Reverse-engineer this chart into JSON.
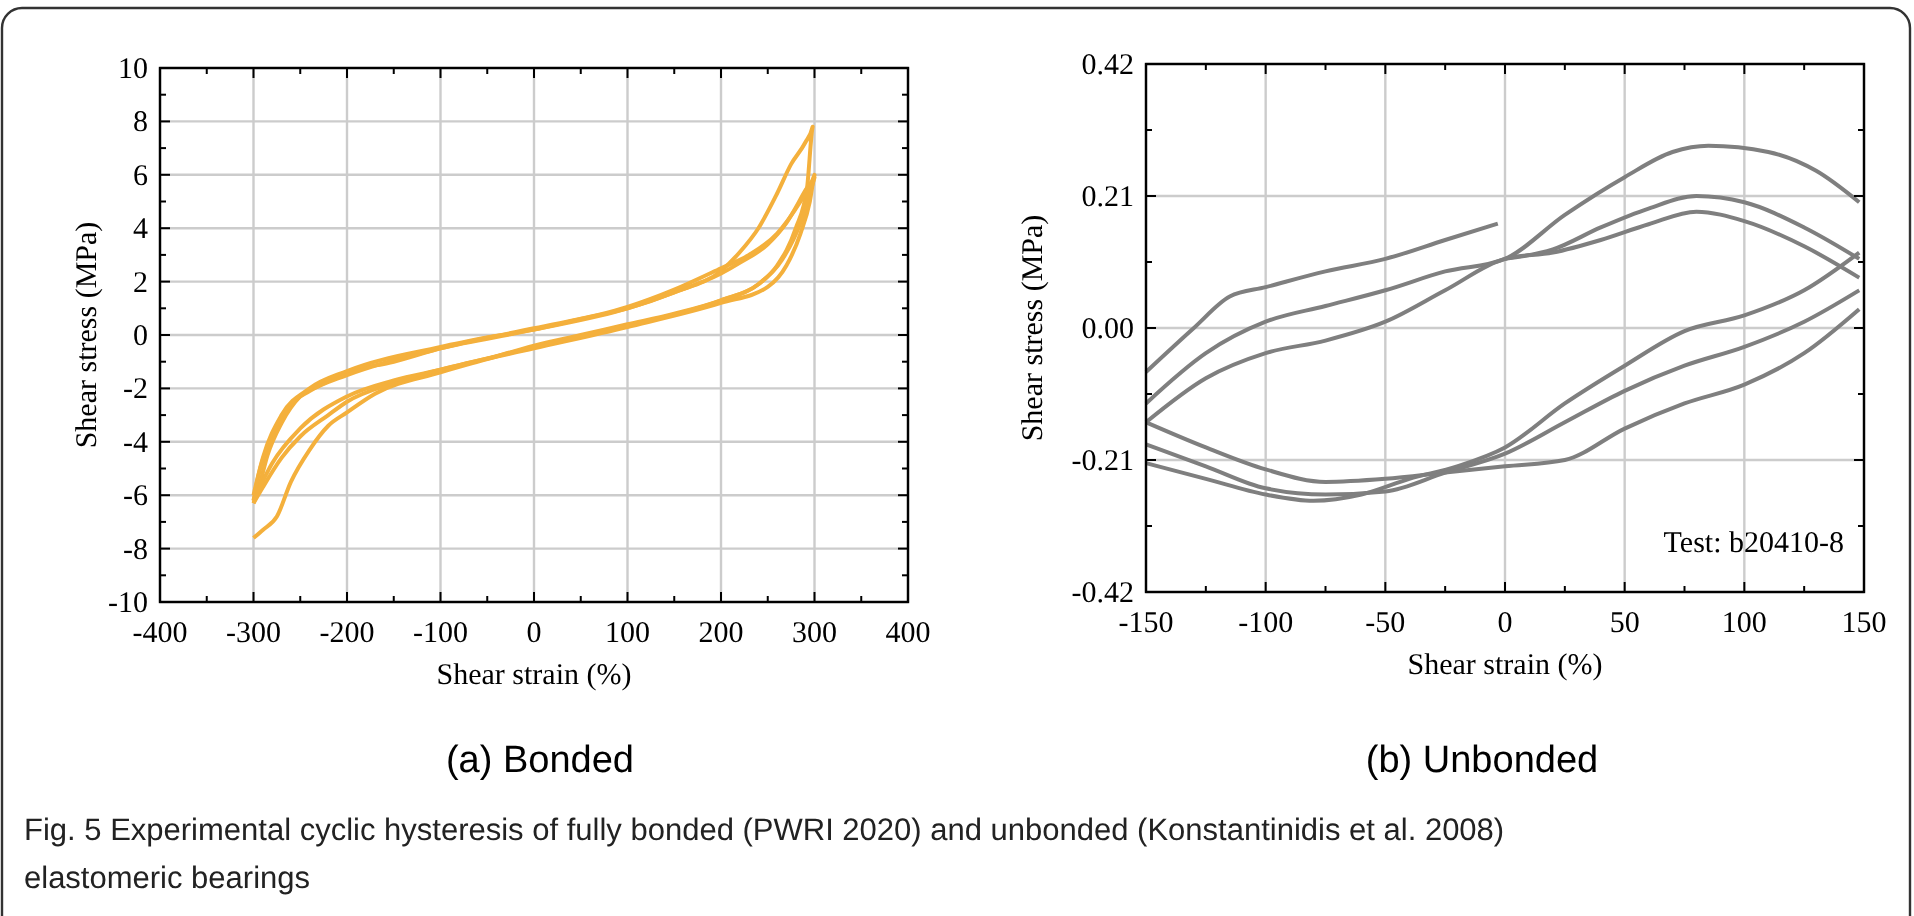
{
  "chart_data": [
    {
      "type": "line",
      "xlabel": "Shear strain (%)",
      "ylabel": "Shear stress (MPa)",
      "xlim": [
        -400,
        400
      ],
      "ylim": [
        -10,
        10
      ],
      "xticks": [
        -400,
        {
          "value": -350,
          "label": null
        },
        -300,
        {
          "value": -250,
          "label": null
        },
        -200,
        {
          "value": -150,
          "label": null
        },
        -100,
        {
          "value": -50,
          "label": null
        },
        0,
        {
          "value": 50,
          "label": null
        },
        100,
        {
          "value": 150,
          "label": null
        },
        200,
        {
          "value": 250,
          "label": null
        },
        300,
        {
          "value": 350,
          "label": null
        },
        400
      ],
      "yticks": [
        -10,
        {
          "value": -9,
          "label": null
        },
        -8,
        {
          "value": -7,
          "label": null
        },
        -6,
        {
          "value": -5,
          "label": null
        },
        -4,
        {
          "value": -3,
          "label": null
        },
        -2,
        {
          "value": -1,
          "label": null
        },
        0,
        {
          "value": 1,
          "label": null
        },
        2,
        {
          "value": 3,
          "label": null
        },
        4,
        {
          "value": 5,
          "label": null
        },
        6,
        {
          "value": 7,
          "label": null
        },
        8,
        {
          "value": 9,
          "label": null
        },
        10
      ],
      "grid": true,
      "series": [
        {
          "color": "#f4b03c",
          "x": [
            -300,
            -290,
            -275,
            -260,
            -240,
            -220,
            -200,
            -170,
            -100,
            -50,
            0,
            50,
            100,
            150,
            200,
            240,
            260,
            280,
            292,
            298,
            290,
            275,
            260,
            240,
            220,
            200,
            150,
            100,
            50,
            0,
            -50,
            -100,
            -150,
            -200,
            -230,
            -250,
            -270,
            -285,
            -295,
            -300
          ],
          "values": [
            -7.6,
            -7.3,
            -6.8,
            -5.5,
            -4.3,
            -3.4,
            -2.9,
            -2.2,
            -1.4,
            -0.9,
            -0.4,
            0,
            0.4,
            0.8,
            1.3,
            1.9,
            2.6,
            4,
            5.5,
            7.8,
            7.2,
            6.4,
            5.3,
            4,
            3.1,
            2.4,
            1.6,
            1,
            0.6,
            0.2,
            -0.1,
            -0.5,
            -1,
            -1.4,
            -1.9,
            -2.3,
            -3.3,
            -4.5,
            -5.8,
            -6.3
          ]
        },
        {
          "color": "#f4b03c",
          "x": [
            -300,
            -290,
            -270,
            -250,
            -220,
            -200,
            -150,
            -100,
            0,
            100,
            200,
            250,
            270,
            285,
            295,
            300,
            290,
            270,
            250,
            220,
            200,
            150,
            100,
            0,
            -100,
            -200,
            -240,
            -260,
            -280,
            -295,
            -300
          ],
          "values": [
            -6.3,
            -5.7,
            -4.6,
            -3.8,
            -3,
            -2.5,
            -1.8,
            -1.3,
            -0.5,
            0.3,
            1.2,
            1.8,
            2.6,
            3.8,
            5,
            6,
            5.4,
            4.2,
            3.4,
            2.7,
            2.3,
            1.6,
            1,
            0.2,
            -0.5,
            -1.5,
            -2.1,
            -2.6,
            -3.8,
            -5.3,
            -6.2
          ]
        },
        {
          "color": "#f4b03c",
          "x": [
            -300,
            -280,
            -250,
            -200,
            -150,
            -100,
            0,
            100,
            200,
            240,
            265,
            285,
            295,
            300,
            285,
            260,
            230,
            200,
            150,
            100,
            0,
            -100,
            -200,
            -240,
            -270,
            -290,
            -300
          ],
          "values": [
            -6.2,
            -4.8,
            -3.5,
            -2.3,
            -1.7,
            -1.3,
            -0.45,
            0.35,
            1.3,
            1.9,
            2.8,
            4.2,
            5.3,
            5.9,
            5,
            3.8,
            3,
            2.5,
            1.7,
            1.05,
            0.25,
            -0.45,
            -1.35,
            -2,
            -3,
            -4.6,
            -6
          ]
        }
      ],
      "annotations": [
        "(a) Bonded"
      ]
    },
    {
      "type": "line",
      "xlabel": "Shear strain (%)",
      "ylabel": "Shear stress (MPa)",
      "xlim": [
        -150,
        150
      ],
      "ylim": [
        -0.42,
        0.42
      ],
      "xticks": [
        -150,
        {
          "value": -125,
          "label": null
        },
        -100,
        {
          "value": -75,
          "label": null
        },
        -50,
        {
          "value": -25,
          "label": null
        },
        0,
        {
          "value": 25,
          "label": null
        },
        50,
        {
          "value": 75,
          "label": null
        },
        100,
        {
          "value": 125,
          "label": null
        },
        150
      ],
      "yticks": [
        -0.42,
        {
          "value": -0.315,
          "label": null
        },
        -0.21,
        {
          "value": -0.105,
          "label": null
        },
        {
          "value": 0,
          "label": "0.00"
        },
        {
          "value": 0.105,
          "label": null
        },
        0.21,
        {
          "value": 0.315,
          "label": null
        },
        0.42
      ],
      "grid": true,
      "series": [
        {
          "color": "#7f7f7f",
          "x": [
            -150,
            -130,
            -115,
            -100,
            -75,
            -50,
            -25,
            -3
          ],
          "values": [
            -0.07,
            0.0,
            0.05,
            0.065,
            0.09,
            0.11,
            0.14,
            0.166
          ]
        },
        {
          "color": "#7f7f7f",
          "x": [
            -150,
            -125,
            -100,
            -80,
            -60,
            -40,
            -20,
            0,
            25,
            50,
            75,
            100,
            125,
            148
          ],
          "values": [
            -0.215,
            -0.24,
            -0.265,
            -0.275,
            -0.265,
            -0.24,
            -0.22,
            -0.19,
            -0.12,
            -0.06,
            -0.005,
            0.02,
            0.06,
            0.12
          ]
        },
        {
          "color": "#7f7f7f",
          "x": [
            -150,
            -125,
            -100,
            -75,
            -50,
            -25,
            0,
            25,
            50,
            75,
            100,
            125,
            148
          ],
          "values": [
            -0.185,
            -0.22,
            -0.255,
            -0.265,
            -0.26,
            -0.23,
            -0.2,
            -0.15,
            -0.1,
            -0.06,
            -0.03,
            0.01,
            0.06
          ]
        },
        {
          "color": "#7f7f7f",
          "x": [
            -150,
            -125,
            -100,
            -75,
            -50,
            -25,
            0,
            25,
            50,
            75,
            100,
            125,
            148
          ],
          "values": [
            -0.15,
            -0.19,
            -0.225,
            -0.245,
            -0.24,
            -0.23,
            -0.22,
            -0.21,
            -0.16,
            -0.12,
            -0.09,
            -0.04,
            0.03
          ]
        },
        {
          "color": "#7f7f7f",
          "x": [
            -150,
            -125,
            -100,
            -75,
            -50,
            -25,
            0,
            25,
            50,
            70,
            85,
            110,
            130,
            148
          ],
          "values": [
            -0.12,
            -0.04,
            0.01,
            0.035,
            0.06,
            0.09,
            0.11,
            0.18,
            0.24,
            0.28,
            0.29,
            0.28,
            0.25,
            0.2
          ]
        },
        {
          "color": "#7f7f7f",
          "x": [
            0,
            20,
            40,
            60,
            80,
            100,
            125,
            148
          ],
          "values": [
            0.11,
            0.125,
            0.16,
            0.19,
            0.21,
            0.2,
            0.16,
            0.11
          ]
        },
        {
          "color": "#7f7f7f",
          "x": [
            -150,
            -125,
            -100,
            -75,
            -50,
            -25,
            0,
            20,
            40,
            60,
            80,
            100,
            125,
            148
          ],
          "values": [
            -0.15,
            -0.08,
            -0.04,
            -0.02,
            0.01,
            0.06,
            0.11,
            0.12,
            0.14,
            0.165,
            0.185,
            0.17,
            0.13,
            0.08
          ]
        }
      ],
      "annotations": [
        "Test: b20410-8",
        "(b) Unbonded",
        "Fig. 5 Experimental cyclic hysteresis of fully bonded (PWRI 2020) and unbonded (Konstantinidis et al. 2008) elastomeric bearings"
      ]
    }
  ]
}
